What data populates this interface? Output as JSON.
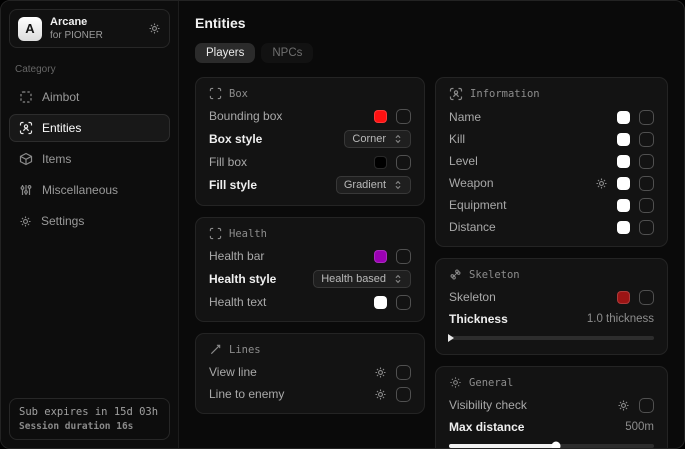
{
  "sidebar": {
    "brand": {
      "logo_letter": "A",
      "title": "Arcane",
      "subtitle": "for PIONER"
    },
    "category_label": "Category",
    "items": [
      {
        "label": "Aimbot",
        "icon": "aimbot-icon",
        "active": false
      },
      {
        "label": "Entities",
        "icon": "scan-person-icon",
        "active": true
      },
      {
        "label": "Items",
        "icon": "items-box-icon",
        "active": false
      },
      {
        "label": "Miscellaneous",
        "icon": "sliders-icon",
        "active": false
      },
      {
        "label": "Settings",
        "icon": "gear-icon",
        "active": false
      }
    ],
    "footer": {
      "line1": "Sub expires in 15d 03h",
      "line2": "Session duration 16s"
    }
  },
  "main": {
    "title": "Entities",
    "tabs": [
      {
        "label": "Players",
        "active": true
      },
      {
        "label": "NPCs",
        "active": false
      }
    ],
    "columns": [
      [
        {
          "title": "Box",
          "icon": "corners-icon",
          "rows": [
            {
              "label": "Bounding box",
              "type": "color-check",
              "swatch": "#ff1111",
              "checked": false
            },
            {
              "label": "Box style",
              "type": "dropdown",
              "value": "Corner"
            },
            {
              "label": "Fill box",
              "type": "color-check",
              "swatch": "#000000",
              "checked": false
            },
            {
              "label": "Fill style",
              "type": "dropdown",
              "value": "Gradient"
            }
          ]
        },
        {
          "title": "Health",
          "icon": "corners-icon",
          "rows": [
            {
              "label": "Health bar",
              "type": "color-check",
              "swatch": "#9b00b4",
              "checked": false
            },
            {
              "label": "Health style",
              "type": "dropdown",
              "value": "Health based"
            },
            {
              "label": "Health text",
              "type": "color-check",
              "swatch": "#ffffff",
              "checked": false
            }
          ]
        },
        {
          "title": "Lines",
          "icon": "line-icon",
          "rows": [
            {
              "label": "View line",
              "type": "gear-check",
              "checked": false
            },
            {
              "label": "Line to enemy",
              "type": "gear-check",
              "checked": false
            }
          ]
        }
      ],
      [
        {
          "title": "Information",
          "icon": "scan-person-icon",
          "rows": [
            {
              "label": "Name",
              "type": "color-check",
              "swatch": "#ffffff",
              "checked": false
            },
            {
              "label": "Kill",
              "type": "color-check",
              "swatch": "#ffffff",
              "checked": false
            },
            {
              "label": "Level",
              "type": "color-check",
              "swatch": "#ffffff",
              "checked": false
            },
            {
              "label": "Weapon",
              "type": "gear-color-check",
              "swatch": "#ffffff",
              "checked": false
            },
            {
              "label": "Equipment",
              "type": "color-check",
              "swatch": "#ffffff",
              "checked": false
            },
            {
              "label": "Distance",
              "type": "color-check",
              "swatch": "#ffffff",
              "checked": false
            }
          ]
        },
        {
          "title": "Skeleton",
          "icon": "bone-icon",
          "rows": [
            {
              "label": "Skeleton",
              "type": "color-check",
              "swatch": "#9c1414",
              "checked": false
            },
            {
              "label": "Thickness",
              "type": "slider",
              "value": "1.0 thickness",
              "fill_pct": 0,
              "thumb": "arrow"
            }
          ]
        },
        {
          "title": "General",
          "icon": "sun-icon",
          "rows": [
            {
              "label": "Visibility check",
              "type": "gear-check",
              "checked": false
            },
            {
              "label": "Max distance",
              "type": "slider",
              "value": "500m",
              "fill_pct": 52,
              "thumb": "circle"
            }
          ]
        }
      ]
    ]
  },
  "colors": {
    "window_bg": "#0a0a0a",
    "panel_bg": "#131313",
    "accent_red": "#ff1111",
    "accent_purple": "#9b00b4",
    "accent_dark_red": "#9c1414"
  }
}
